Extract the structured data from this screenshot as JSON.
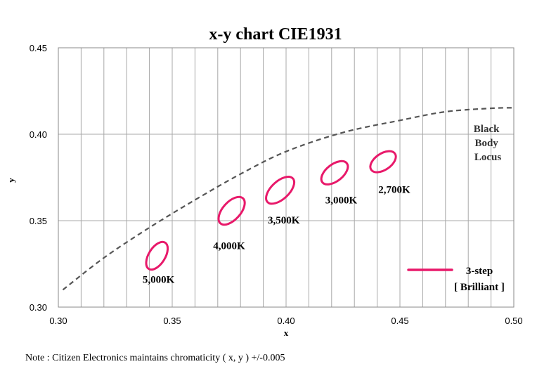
{
  "chart_data": {
    "type": "scatter",
    "title": "x-y chart  CIE1931",
    "xlabel": "x",
    "ylabel": "y",
    "xlim": [
      0.3,
      0.5
    ],
    "ylim": [
      0.3,
      0.45
    ],
    "x_ticks": [
      "0.30",
      "0.35",
      "0.40",
      "0.45",
      "0.50"
    ],
    "y_ticks": [
      "0.30",
      "0.35",
      "0.40",
      "0.45"
    ],
    "x_minor_step": 0.01,
    "y_major_step": 0.05,
    "grid": true,
    "ellipse_color": "#e8196a",
    "locus_color": "#555555",
    "black_body_locus": {
      "label_lines": [
        "Black",
        "Body",
        "Locus"
      ],
      "points": [
        [
          0.302,
          0.31
        ],
        [
          0.32,
          0.3285
        ],
        [
          0.34,
          0.346
        ],
        [
          0.36,
          0.362
        ],
        [
          0.38,
          0.377
        ],
        [
          0.4,
          0.39
        ],
        [
          0.425,
          0.401
        ],
        [
          0.45,
          0.408
        ],
        [
          0.47,
          0.413
        ],
        [
          0.49,
          0.415
        ],
        [
          0.5,
          0.4153
        ]
      ]
    },
    "ellipses": [
      {
        "label": "5,000K",
        "cx": 0.3433,
        "cy": 0.3297,
        "rx": 0.0068,
        "ry": 0.0036,
        "angle_deg": 58,
        "label_x": 0.344,
        "label_y": 0.316
      },
      {
        "label": "4,000K",
        "cx": 0.3761,
        "cy": 0.3557,
        "rx": 0.0074,
        "ry": 0.0039,
        "angle_deg": 48,
        "label_x": 0.375,
        "label_y": 0.3355
      },
      {
        "label": "3,500K",
        "cx": 0.3974,
        "cy": 0.3676,
        "rx": 0.0076,
        "ry": 0.0039,
        "angle_deg": 43,
        "label_x": 0.399,
        "label_y": 0.3505
      },
      {
        "label": "3,000K",
        "cx": 0.4213,
        "cy": 0.3777,
        "rx": 0.0068,
        "ry": 0.0037,
        "angle_deg": 38,
        "label_x": 0.4242,
        "label_y": 0.362
      },
      {
        "label": "2,700K",
        "cx": 0.4426,
        "cy": 0.3841,
        "rx": 0.0063,
        "ry": 0.0036,
        "angle_deg": 34,
        "label_x": 0.4475,
        "label_y": 0.368
      }
    ],
    "legend": {
      "label": "3-step",
      "sublabel": "[ Brilliant ]",
      "placement": "bottom-right"
    }
  },
  "note": "Note : Citizen Electronics maintains chromaticity ( x, y ) +/-0.005"
}
